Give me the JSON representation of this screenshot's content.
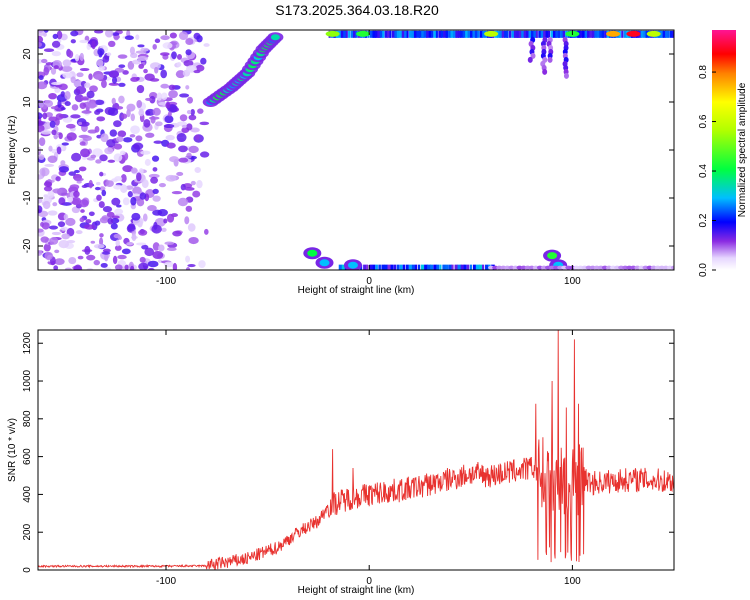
{
  "title": "S173.2025.364.03.18.R20",
  "chart_data": [
    {
      "type": "heatmap",
      "title": "",
      "xlabel": "Height of straight line (km)",
      "ylabel": "Frequency (Hz)",
      "xlim": [
        -163,
        150
      ],
      "ylim": [
        -25,
        25
      ],
      "xticks": [
        -100,
        0,
        100
      ],
      "yticks": [
        -20,
        -10,
        0,
        10,
        20
      ],
      "colorbar": {
        "label": "Normalized spectral amplitude",
        "range": [
          0,
          0.97
        ],
        "ticks": [
          0,
          0.2,
          0.4,
          0.6,
          0.8
        ],
        "tick_labels": [
          "0.0",
          "0.2",
          "0.4",
          "0.6",
          "0.8"
        ]
      },
      "features": [
        {
          "name": "scattered noise",
          "x_range": [
            -163,
            -80
          ],
          "y_range": [
            -25,
            25
          ],
          "level": 0.15
        },
        {
          "name": "rising line",
          "points": [
            [
              -78,
              10
            ],
            [
              -68,
              13
            ],
            [
              -60,
              16
            ],
            [
              -52,
              21
            ],
            [
              -45,
              24
            ]
          ],
          "level": 0.5
        },
        {
          "name": "top edge line",
          "x_range": [
            -20,
            150
          ],
          "y": 24.2,
          "level": 0.6
        },
        {
          "name": "bottom edge line",
          "x_range": [
            -15,
            60
          ],
          "y": -24.3,
          "level": 0.35
        }
      ]
    },
    {
      "type": "line",
      "title": "",
      "xlabel": "Height of straight line (km)",
      "ylabel": "SNR (10 * v/v)",
      "xlim": [
        -163,
        150
      ],
      "ylim": [
        0,
        1270
      ],
      "xticks": [
        -100,
        0,
        100
      ],
      "yticks": [
        0,
        200,
        400,
        600,
        800,
        1000,
        1200
      ],
      "color": "#e8322f",
      "envelope": {
        "x": [
          -163,
          -100,
          -80,
          -60,
          -45,
          -35,
          -25,
          -20,
          -10,
          0,
          20,
          40,
          50,
          60,
          70,
          80,
          85,
          90,
          95,
          100,
          105,
          110,
          120,
          130,
          150
        ],
        "y": [
          20,
          20,
          22,
          60,
          120,
          200,
          260,
          340,
          380,
          400,
          430,
          480,
          510,
          500,
          520,
          540,
          520,
          500,
          480,
          470,
          480,
          460,
          470,
          480,
          470
        ]
      },
      "spikes": [
        {
          "x": -18,
          "y": 640
        },
        {
          "x": -8,
          "y": 540
        },
        {
          "x": 82,
          "y": 880
        },
        {
          "x": 90,
          "y": 1000
        },
        {
          "x": 93,
          "y": 1270
        },
        {
          "x": 97,
          "y": 860
        },
        {
          "x": 101,
          "y": 1220
        },
        {
          "x": 103,
          "y": 880
        }
      ]
    }
  ]
}
